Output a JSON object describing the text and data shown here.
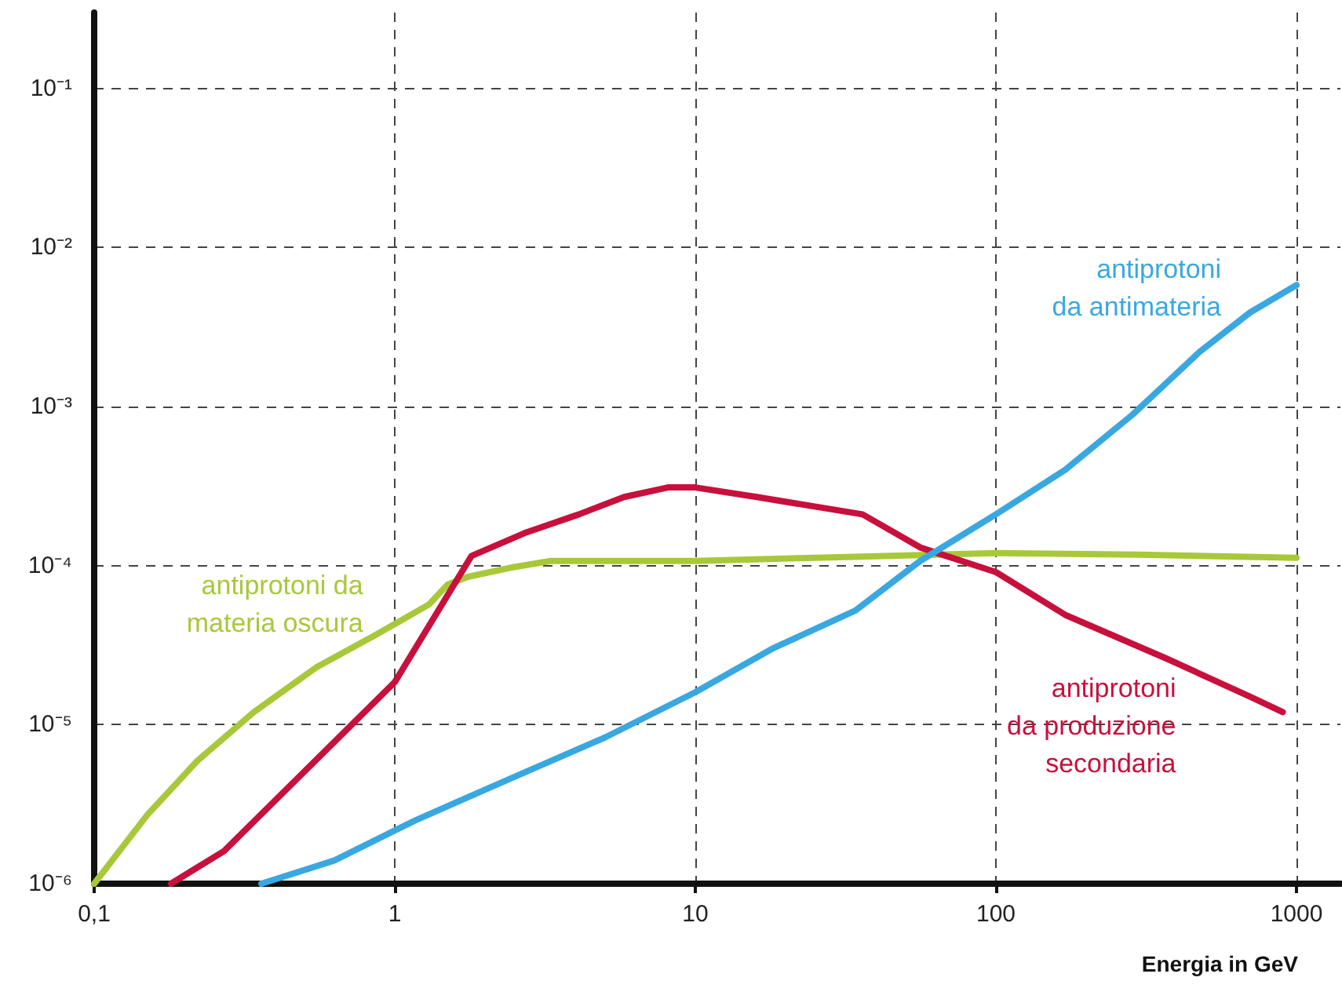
{
  "chart_data": {
    "type": "line",
    "xlabel": "Energia in GeV",
    "log": "xy",
    "grid": true,
    "legend": false,
    "marker": "none",
    "line_style": "solid",
    "xlim": [
      0.1,
      1400
    ],
    "ylim": [
      1e-06,
      0.3
    ],
    "xticks": [
      {
        "value": 0.1,
        "label": "0,1"
      },
      1,
      10,
      100,
      1000
    ],
    "yticks": [
      {
        "value": 1e-06,
        "label": "10⁻⁶"
      },
      {
        "value": 1e-05,
        "label": "10⁻⁵"
      },
      {
        "value": 0.0001,
        "label": "10⁻⁴"
      },
      {
        "value": 0.001,
        "label": "10⁻³"
      },
      {
        "value": 0.01,
        "label": "10⁻²"
      },
      {
        "value": 0.1,
        "label": "10⁻¹"
      }
    ],
    "series": [
      {
        "name": "antiprotoni da\nmateria oscura",
        "color": "#a8c83a",
        "x": [
          0.1,
          0.15,
          0.22,
          0.34,
          0.55,
          0.85,
          1.3,
          1.5,
          1.75,
          2.5,
          3.3,
          10,
          30,
          100,
          300,
          1000
        ],
        "values": [
          1e-06,
          2.7e-06,
          5.9e-06,
          1.2e-05,
          2.3e-05,
          3.6e-05,
          5.7e-05,
          7.6e-05,
          8.5e-05,
          9.8e-05,
          0.000107,
          0.000107,
          0.000113,
          0.00012,
          0.000117,
          0.000112
        ]
      },
      {
        "name": "antiprotoni\nda produzione\nsecondaria",
        "color": "#c8103c",
        "x": [
          0.18,
          0.27,
          1,
          1.8,
          2.7,
          4.1,
          5.8,
          8.1,
          10,
          16,
          36,
          56,
          100,
          170,
          370,
          700,
          900
        ],
        "values": [
          1e-06,
          1.6e-06,
          1.85e-05,
          0.000115,
          0.00016,
          0.00021,
          0.00027,
          0.00031,
          0.00031,
          0.00027,
          0.00021,
          0.00013,
          9.1e-05,
          4.9e-05,
          2.6e-05,
          1.5e-05,
          1.2e-05
        ]
      },
      {
        "name": "antiprotoni\nda antimateria",
        "color": "#3aa8e0",
        "x": [
          0.36,
          0.63,
          1.17,
          2.5,
          5,
          10,
          18,
          34,
          56,
          100,
          170,
          285,
          475,
          700,
          1000
        ],
        "values": [
          1e-06,
          1.4e-06,
          2.5e-06,
          4.7e-06,
          8.3e-06,
          1.6e-05,
          3e-05,
          5.2e-05,
          0.000107,
          0.00021,
          0.0004,
          0.00089,
          0.0022,
          0.0039,
          0.0058
        ]
      }
    ]
  }
}
